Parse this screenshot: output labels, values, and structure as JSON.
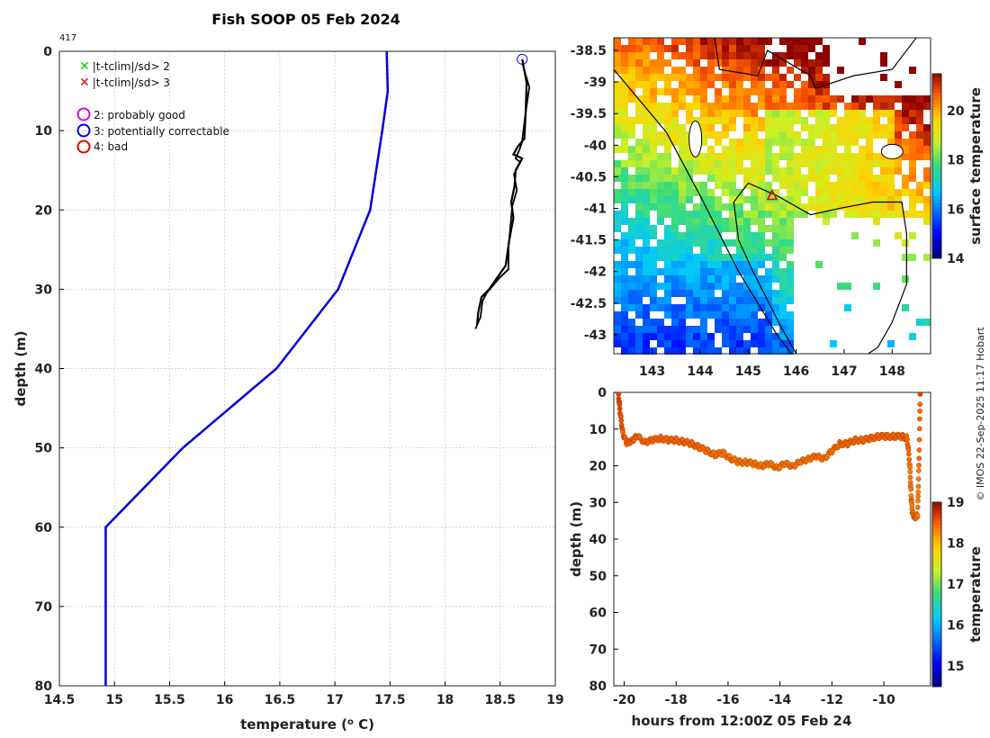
{
  "title": "Fish SOOP 05 Feb 2024",
  "profile_id": "417",
  "credit": "© IMOS 22-Sep-2025 11:17 Hobart",
  "legend": {
    "qc_x_green": "|t-tclim|/sd> 2",
    "qc_x_red": "|t-tclim|/sd> 3",
    "flag2": "2: probably good",
    "flag3": "3: potentially correctable",
    "flag4": "4: bad"
  },
  "colors": {
    "climatology": "#0000dd",
    "profile": "#000000",
    "track_dots": "#c85000",
    "flag2": "#e000e0",
    "flag3": "#0000e0",
    "flag4": "#e00000",
    "x_green": "#00cc00",
    "x_red": "#dd0000"
  },
  "chart_data": [
    {
      "type": "line",
      "name": "temperature-profile",
      "xlabel": "temperature (o C)",
      "ylabel": "depth (m)",
      "xlim": [
        14.5,
        19
      ],
      "ylim": [
        80,
        0
      ],
      "xticks": [
        "14.5",
        "15",
        "15.5",
        "16",
        "16.5",
        "17",
        "17.5",
        "18",
        "18.5",
        "19"
      ],
      "yticks": [
        "0",
        "10",
        "20",
        "30",
        "40",
        "50",
        "60",
        "70",
        "80"
      ],
      "grid": true,
      "series": [
        {
          "name": "climatology",
          "x": [
            17.47,
            17.48,
            17.43,
            17.32,
            17.03,
            16.47,
            15.62,
            14.92,
            14.92
          ],
          "y": [
            0,
            5,
            10,
            20,
            30,
            40,
            50,
            60,
            80
          ]
        },
        {
          "name": "profile",
          "x": [
            18.7,
            18.74,
            18.73,
            18.72,
            18.66,
            18.62,
            18.7,
            18.64,
            18.63,
            18.6,
            18.62,
            18.58,
            18.55,
            18.5,
            18.4,
            18.33,
            18.3,
            18.29
          ],
          "y": [
            1,
            4,
            8,
            11,
            12,
            13,
            13.5,
            15,
            17,
            19,
            21,
            24,
            27,
            28,
            30,
            31,
            33,
            34.5
          ]
        }
      ],
      "flag_marker": {
        "flag": "3",
        "x": 18.7,
        "y": 1
      }
    },
    {
      "type": "heatmap",
      "name": "sst-map",
      "colorbar_label": "surface temperature",
      "colorbar_range": [
        14,
        21.5
      ],
      "colorbar_ticks": [
        "14",
        "16",
        "18",
        "20"
      ],
      "xlim": [
        142.2,
        148.8
      ],
      "ylim": [
        -43.3,
        -38.3
      ],
      "xticks": [
        "143",
        "144",
        "145",
        "146",
        "147",
        "148"
      ],
      "yticks": [
        "-38.5",
        "-39",
        "-39.5",
        "-40",
        "-40.5",
        "-41",
        "-41.5",
        "-42",
        "-42.5",
        "-43"
      ],
      "station": {
        "lon": 145.5,
        "lat": -40.8
      }
    },
    {
      "type": "scatter",
      "name": "depth-time",
      "xlabel": "hours from 12:00Z 05 Feb 24",
      "ylabel": "depth (m)",
      "xlim": [
        -20.4,
        -8.2
      ],
      "ylim": [
        80,
        0
      ],
      "xticks": [
        "-20",
        "-18",
        "-16",
        "-14",
        "-12",
        "-10"
      ],
      "yticks": [
        "0",
        "10",
        "20",
        "30",
        "40",
        "50",
        "60",
        "70",
        "80"
      ],
      "colorbar_label": "temperature",
      "colorbar_range": [
        14.5,
        19
      ],
      "colorbar_ticks": [
        "15",
        "16",
        "17",
        "18",
        "19"
      ],
      "track": {
        "x": [
          -20.22,
          -20.15,
          -20.05,
          -19.9,
          -19.7,
          -19.5,
          -19.2,
          -18.9,
          -18.6,
          -18.3,
          -18,
          -17.7,
          -17.4,
          -17.1,
          -16.8,
          -16.5,
          -16.2,
          -15.9,
          -15.6,
          -15.3,
          -15,
          -14.7,
          -14.4,
          -14.1,
          -13.8,
          -13.5,
          -13.2,
          -12.9,
          -12.6,
          -12.3,
          -12,
          -11.7,
          -11.4,
          -11.1,
          -10.8,
          -10.5,
          -10.2,
          -9.9,
          -9.6,
          -9.3,
          -9.1,
          -9.0,
          -8.95,
          -8.9,
          -8.8,
          -8.7,
          -8.65,
          -8.6
        ],
        "y": [
          0.5,
          6,
          11,
          14,
          13,
          12,
          13.5,
          13,
          12.5,
          13,
          13,
          13.5,
          14,
          15,
          16,
          17,
          16.5,
          18,
          19,
          19,
          19.5,
          20,
          19.5,
          20.5,
          19.5,
          20,
          19,
          18,
          17.5,
          18,
          16,
          14,
          14,
          13,
          13,
          12.5,
          12,
          12,
          12,
          12,
          12.5,
          20,
          28,
          33,
          34,
          33.5,
          20,
          0.5
        ],
        "temp": [
          18.6,
          18.5,
          18.4,
          18.4,
          18.4,
          18.4,
          18.4,
          18.4,
          18.4,
          18.4,
          18.4,
          18.4,
          18.4,
          18.35,
          18.35,
          18.35,
          18.3,
          18.3,
          18.3,
          18.3,
          18.3,
          18.3,
          18.3,
          18.3,
          18.3,
          18.3,
          18.3,
          18.3,
          18.3,
          18.3,
          18.35,
          18.4,
          18.4,
          18.4,
          18.4,
          18.4,
          18.4,
          18.4,
          18.4,
          18.4,
          18.4,
          18.3,
          18.3,
          18.3,
          18.3,
          18.3,
          18.4,
          18.6
        ]
      }
    }
  ]
}
